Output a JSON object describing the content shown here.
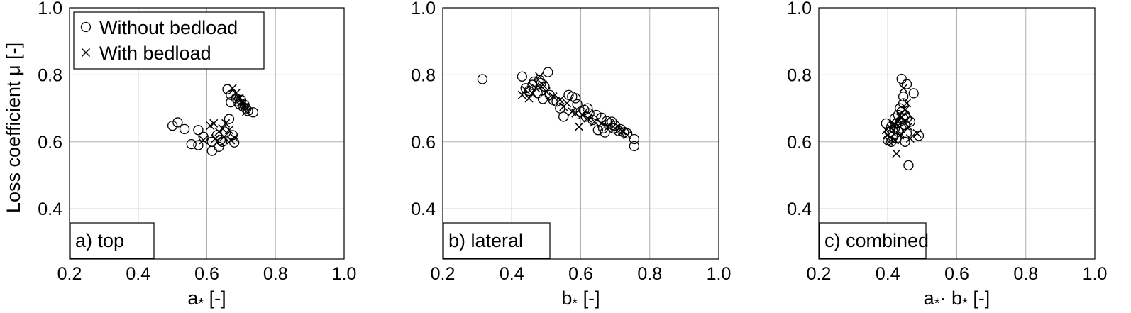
{
  "chart_data": [
    {
      "type": "scatter",
      "panel_label": "a) top",
      "xlabel": "a",
      "xlabel_sub": "*",
      "xlabel_suffix": " [-]",
      "ylabel": "Loss coefficient μ [-]",
      "xlim": [
        0.2,
        1.0
      ],
      "ylim": [
        0.25,
        1.0
      ],
      "xticks": [
        "0.2",
        "0.4",
        "0.6",
        "0.8",
        "1.0"
      ],
      "yticks": [
        "0.4",
        "0.6",
        "0.8",
        "1.0"
      ],
      "grid": true,
      "legend": {
        "placement": "top-left",
        "entries": [
          {
            "label": "Without bedload",
            "marker": "circle"
          },
          {
            "label": "With bedload",
            "marker": "x"
          }
        ]
      },
      "series": [
        {
          "name": "Without bedload",
          "marker": "circle",
          "points": [
            [
              0.5,
              0.648
            ],
            [
              0.515,
              0.658
            ],
            [
              0.535,
              0.638
            ],
            [
              0.555,
              0.593
            ],
            [
              0.575,
              0.635
            ],
            [
              0.575,
              0.59
            ],
            [
              0.59,
              0.615
            ],
            [
              0.615,
              0.573
            ],
            [
              0.615,
              0.6
            ],
            [
              0.63,
              0.62
            ],
            [
              0.635,
              0.585
            ],
            [
              0.64,
              0.605
            ],
            [
              0.645,
              0.6
            ],
            [
              0.655,
              0.628
            ],
            [
              0.66,
              0.757
            ],
            [
              0.665,
              0.668
            ],
            [
              0.67,
              0.74
            ],
            [
              0.67,
              0.718
            ],
            [
              0.675,
              0.62
            ],
            [
              0.68,
              0.598
            ],
            [
              0.685,
              0.73
            ],
            [
              0.69,
              0.72
            ],
            [
              0.695,
              0.712
            ],
            [
              0.7,
              0.725
            ],
            [
              0.705,
              0.705
            ],
            [
              0.71,
              0.71
            ],
            [
              0.715,
              0.698
            ],
            [
              0.72,
              0.692
            ],
            [
              0.735,
              0.688
            ]
          ]
        },
        {
          "name": "With bedload",
          "marker": "x",
          "points": [
            [
              0.59,
              0.605
            ],
            [
              0.61,
              0.648
            ],
            [
              0.62,
              0.655
            ],
            [
              0.625,
              0.61
            ],
            [
              0.635,
              0.63
            ],
            [
              0.645,
              0.64
            ],
            [
              0.65,
              0.615
            ],
            [
              0.655,
              0.655
            ],
            [
              0.665,
              0.635
            ],
            [
              0.67,
              0.605
            ],
            [
              0.675,
              0.76
            ],
            [
              0.68,
              0.612
            ],
            [
              0.685,
              0.745
            ],
            [
              0.695,
              0.73
            ],
            [
              0.7,
              0.718
            ],
            [
              0.705,
              0.712
            ],
            [
              0.71,
              0.705
            ],
            [
              0.715,
              0.69
            ]
          ]
        }
      ]
    },
    {
      "type": "scatter",
      "panel_label": "b) lateral",
      "xlabel": "b",
      "xlabel_sub": "*",
      "xlabel_suffix": " [-]",
      "xlim": [
        0.2,
        1.0
      ],
      "ylim": [
        0.25,
        1.0
      ],
      "xticks": [
        "0.2",
        "0.4",
        "0.6",
        "0.8",
        "1.0"
      ],
      "yticks": [
        "0.4",
        "0.6",
        "0.8",
        "1.0"
      ],
      "grid": true,
      "series": [
        {
          "name": "Without bedload",
          "marker": "circle",
          "points": [
            [
              0.315,
              0.787
            ],
            [
              0.43,
              0.795
            ],
            [
              0.44,
              0.76
            ],
            [
              0.45,
              0.752
            ],
            [
              0.46,
              0.77
            ],
            [
              0.465,
              0.78
            ],
            [
              0.475,
              0.745
            ],
            [
              0.48,
              0.785
            ],
            [
              0.485,
              0.775
            ],
            [
              0.49,
              0.728
            ],
            [
              0.495,
              0.765
            ],
            [
              0.505,
              0.808
            ],
            [
              0.51,
              0.74
            ],
            [
              0.52,
              0.725
            ],
            [
              0.53,
              0.72
            ],
            [
              0.54,
              0.7
            ],
            [
              0.55,
              0.675
            ],
            [
              0.565,
              0.74
            ],
            [
              0.575,
              0.735
            ],
            [
              0.585,
              0.73
            ],
            [
              0.59,
              0.712
            ],
            [
              0.6,
              0.69
            ],
            [
              0.61,
              0.695
            ],
            [
              0.615,
              0.675
            ],
            [
              0.62,
              0.7
            ],
            [
              0.625,
              0.685
            ],
            [
              0.635,
              0.665
            ],
            [
              0.645,
              0.68
            ],
            [
              0.65,
              0.635
            ],
            [
              0.66,
              0.672
            ],
            [
              0.665,
              0.64
            ],
            [
              0.67,
              0.628
            ],
            [
              0.675,
              0.662
            ],
            [
              0.685,
              0.655
            ],
            [
              0.69,
              0.66
            ],
            [
              0.695,
              0.64
            ],
            [
              0.7,
              0.648
            ],
            [
              0.71,
              0.632
            ],
            [
              0.715,
              0.638
            ],
            [
              0.725,
              0.628
            ],
            [
              0.735,
              0.625
            ],
            [
              0.755,
              0.608
            ],
            [
              0.755,
              0.587
            ]
          ]
        },
        {
          "name": "With bedload",
          "marker": "x",
          "points": [
            [
              0.43,
              0.74
            ],
            [
              0.44,
              0.755
            ],
            [
              0.45,
              0.73
            ],
            [
              0.46,
              0.745
            ],
            [
              0.47,
              0.76
            ],
            [
              0.48,
              0.795
            ],
            [
              0.49,
              0.77
            ],
            [
              0.5,
              0.75
            ],
            [
              0.52,
              0.735
            ],
            [
              0.54,
              0.725
            ],
            [
              0.55,
              0.705
            ],
            [
              0.56,
              0.715
            ],
            [
              0.575,
              0.69
            ],
            [
              0.585,
              0.685
            ],
            [
              0.595,
              0.645
            ],
            [
              0.605,
              0.68
            ],
            [
              0.62,
              0.67
            ],
            [
              0.64,
              0.66
            ],
            [
              0.66,
              0.655
            ],
            [
              0.68,
              0.645
            ],
            [
              0.7,
              0.64
            ],
            [
              0.72,
              0.632
            ],
            [
              0.735,
              0.62
            ]
          ]
        }
      ]
    },
    {
      "type": "scatter",
      "panel_label": "c) combined",
      "xlabel": "a",
      "xlabel_sub": "*",
      "xlabel_mid": "· b",
      "xlabel_sub2": "*",
      "xlabel_suffix": " [-]",
      "xlim": [
        0.2,
        1.0
      ],
      "ylim": [
        0.25,
        1.0
      ],
      "xticks": [
        "0.2",
        "0.4",
        "0.6",
        "0.8",
        "1.0"
      ],
      "yticks": [
        "0.4",
        "0.6",
        "0.8",
        "1.0"
      ],
      "grid": true,
      "series": [
        {
          "name": "Without bedload",
          "marker": "circle",
          "points": [
            [
              0.395,
              0.655
            ],
            [
              0.4,
              0.605
            ],
            [
              0.405,
              0.63
            ],
            [
              0.41,
              0.645
            ],
            [
              0.41,
              0.6
            ],
            [
              0.415,
              0.615
            ],
            [
              0.42,
              0.64
            ],
            [
              0.42,
              0.67
            ],
            [
              0.425,
              0.61
            ],
            [
              0.425,
              0.655
            ],
            [
              0.43,
              0.63
            ],
            [
              0.43,
              0.68
            ],
            [
              0.435,
              0.66
            ],
            [
              0.435,
              0.7
            ],
            [
              0.44,
              0.64
            ],
            [
              0.44,
              0.69
            ],
            [
              0.44,
              0.788
            ],
            [
              0.445,
              0.67
            ],
            [
              0.445,
              0.735
            ],
            [
              0.445,
              0.715
            ],
            [
              0.45,
              0.65
            ],
            [
              0.45,
              0.6
            ],
            [
              0.45,
              0.68
            ],
            [
              0.455,
              0.67
            ],
            [
              0.455,
              0.625
            ],
            [
              0.455,
              0.772
            ],
            [
              0.46,
              0.53
            ],
            [
              0.465,
              0.66
            ],
            [
              0.475,
              0.745
            ],
            [
              0.49,
              0.618
            ]
          ]
        },
        {
          "name": "With bedload",
          "marker": "x",
          "points": [
            [
              0.395,
              0.635
            ],
            [
              0.4,
              0.62
            ],
            [
              0.405,
              0.6
            ],
            [
              0.41,
              0.64
            ],
            [
              0.415,
              0.65
            ],
            [
              0.42,
              0.605
            ],
            [
              0.425,
              0.565
            ],
            [
              0.43,
              0.66
            ],
            [
              0.435,
              0.62
            ],
            [
              0.44,
              0.675
            ],
            [
              0.445,
              0.76
            ],
            [
              0.45,
              0.695
            ],
            [
              0.455,
              0.715
            ],
            [
              0.46,
              0.645
            ],
            [
              0.465,
              0.61
            ],
            [
              0.485,
              0.625
            ]
          ]
        }
      ]
    }
  ]
}
